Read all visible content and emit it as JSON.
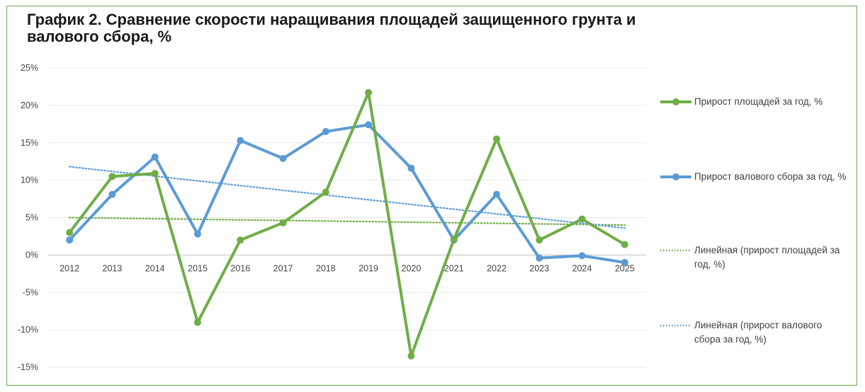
{
  "title": "График 2. Сравнение скорости наращивания площадей защищенного грунта и валового сбора, %",
  "chart_data": {
    "type": "line",
    "title": "График 2. Сравнение скорости наращивания площадей защищенного грунта и валового сбора, %",
    "categories": [
      "2012",
      "2013",
      "2014",
      "2015",
      "2016",
      "2017",
      "2018",
      "2019",
      "2020",
      "2021",
      "2022",
      "2023",
      "2024",
      "2025"
    ],
    "y_ticks": [
      "25%",
      "20%",
      "15%",
      "10%",
      "5%",
      "0%",
      "-5%",
      "-10%",
      "-15%"
    ],
    "ylim": [
      -15,
      25
    ],
    "grid": true,
    "legend_position": "right",
    "series": [
      {
        "name": "Прирост площадей  за год, %",
        "color": "#70ad47",
        "style": "solid",
        "values": [
          3.0,
          10.5,
          10.9,
          -9.0,
          2.0,
          4.3,
          8.4,
          21.7,
          -13.5,
          2.1,
          15.5,
          2.0,
          4.8,
          1.4
        ]
      },
      {
        "name": "Прирост валового сбора за год, %",
        "color": "#5b9bd5",
        "style": "solid",
        "values": [
          2.0,
          8.1,
          13.1,
          2.8,
          15.3,
          12.9,
          16.5,
          17.4,
          11.6,
          2.0,
          8.1,
          -0.4,
          -0.1,
          -1.0
        ]
      }
    ],
    "trendlines": [
      {
        "name": "Линейная (прирост площадей за год, %)",
        "color": "#70ad47",
        "style": "dotted",
        "start": 5.0,
        "end": 4.0
      },
      {
        "name": "Линейная (прирост валового сбора за год, %)",
        "color": "#5b9bd5",
        "style": "dotted",
        "start": 11.8,
        "end": 3.6
      }
    ]
  },
  "legend": [
    "Прирост площадей  за год, %",
    "Прирост валового сбора за год, %",
    "Линейная (прирост площадей за год, %)",
    "Линейная (прирост валового сбора за год, %)"
  ]
}
